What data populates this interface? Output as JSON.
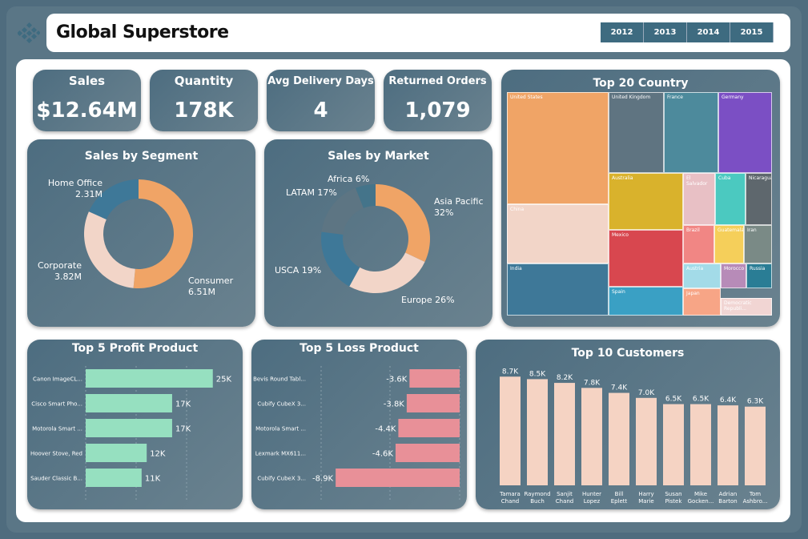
{
  "header": {
    "title": "Global Superstore",
    "years": [
      "2012",
      "2013",
      "2014",
      "2015"
    ]
  },
  "kpis": {
    "sales": {
      "label": "Sales",
      "value": "$12.64M"
    },
    "quantity": {
      "label": "Quantity",
      "value": "178K"
    },
    "delivery": {
      "label": "Avg Delivery Days",
      "value": "4"
    },
    "returned": {
      "label": "Returned Orders",
      "value": "1,079"
    }
  },
  "titles": {
    "segment": "Sales by Segment",
    "market": "Sales by Market",
    "country": "Top 20 Country",
    "profit": "Top 5 Profit Product",
    "loss": "Top 5 Loss Product",
    "customers": "Top 10 Customers"
  },
  "colors": {
    "orange": "#f0a466",
    "peach": "#f2d5c8",
    "teal": "#3e7898",
    "slate": "#5d7583",
    "green": "#96e0c0",
    "pink": "#e89098",
    "bar_peach": "#f5d3c3"
  },
  "chart_data": [
    {
      "id": "segment",
      "type": "pie",
      "donut": true,
      "categories": [
        "Consumer",
        "Corporate",
        "Home Office"
      ],
      "values": [
        6.51,
        3.82,
        2.31
      ],
      "value_labels": [
        "6.51M",
        "3.82M",
        "2.31M"
      ],
      "colors": [
        "#f0a466",
        "#f2d5c8",
        "#3e7898"
      ]
    },
    {
      "id": "market",
      "type": "pie",
      "donut": true,
      "categories": [
        "Asia Pacific",
        "Europe",
        "USCA",
        "LATAM",
        "Africa"
      ],
      "values": [
        32,
        26,
        19,
        17,
        6
      ],
      "labels": [
        "Asia Pacific\n32%",
        "Europe 26%",
        "USCA 19%",
        "LATAM 17%",
        "Africa 6%"
      ],
      "colors": [
        "#f0a466",
        "#f2d5c8",
        "#3e7898",
        "#5d7583",
        "#44748a"
      ]
    },
    {
      "id": "country",
      "type": "treemap",
      "categories": [
        "United States",
        "China",
        "India",
        "United Kingdom",
        "France",
        "Germany",
        "Australia",
        "Mexico",
        "Spain",
        "El Salvador",
        "Cuba",
        "Nicaragua",
        "Brazil",
        "Guatemala",
        "Iran",
        "Austria",
        "Morocco",
        "Russia",
        "Japan",
        "Democratic Republi..."
      ],
      "colors": [
        "#f0a466",
        "#f2d5c8",
        "#3e7898",
        "#5f7481",
        "#4d8a9c",
        "#7b4fc4",
        "#d9b22c",
        "#d8474f",
        "#3aa0c4",
        "#e8c0c5",
        "#4bc9c0",
        "#5e676d",
        "#f18684",
        "#f5cf5a",
        "#7a8a86",
        "#a3dbe8",
        "#b78bb8",
        "#2a7d95",
        "#f7a586",
        "#f1d5d3"
      ]
    },
    {
      "id": "profit",
      "type": "bar",
      "orientation": "horizontal",
      "categories": [
        "Canon ImageCL...",
        "Cisco Smart Pho...",
        "Motorola Smart ...",
        "Hoover Stove, Red",
        "Sauder Classic B..."
      ],
      "values": [
        25,
        17,
        17,
        12,
        11
      ],
      "value_labels": [
        "25K",
        "17K",
        "17K",
        "12K",
        "11K"
      ],
      "xlim": [
        0,
        30
      ]
    },
    {
      "id": "loss",
      "type": "bar",
      "orientation": "horizontal",
      "categories": [
        "Bevis Round Tabl...",
        "Cubify CubeX 3...",
        "Motorola Smart ...",
        "Lexmark MX611...",
        "Cubify CubeX 3..."
      ],
      "values": [
        -3.6,
        -3.8,
        -4.4,
        -4.6,
        -8.9
      ],
      "value_labels": [
        "-3.6K",
        "-3.8K",
        "-4.4K",
        "-4.6K",
        "-8.9K"
      ],
      "xlim": [
        -10,
        0
      ]
    },
    {
      "id": "customers",
      "type": "bar",
      "categories": [
        "Tamara Chand",
        "Raymond Buch",
        "Sanjit Chand",
        "Hunter Lopez",
        "Bill Eplett",
        "Harry Marie",
        "Susan Pistek",
        "Mike Gocken...",
        "Adrian Barton",
        "Tom Ashbro..."
      ],
      "values": [
        8.7,
        8.5,
        8.2,
        7.8,
        7.4,
        7.0,
        6.5,
        6.5,
        6.4,
        6.3
      ],
      "value_labels": [
        "8.7K",
        "8.5K",
        "8.2K",
        "7.8K",
        "7.4K",
        "7.0K",
        "6.5K",
        "6.5K",
        "6.4K",
        "6.3K"
      ],
      "ylim": [
        0,
        9
      ]
    }
  ]
}
